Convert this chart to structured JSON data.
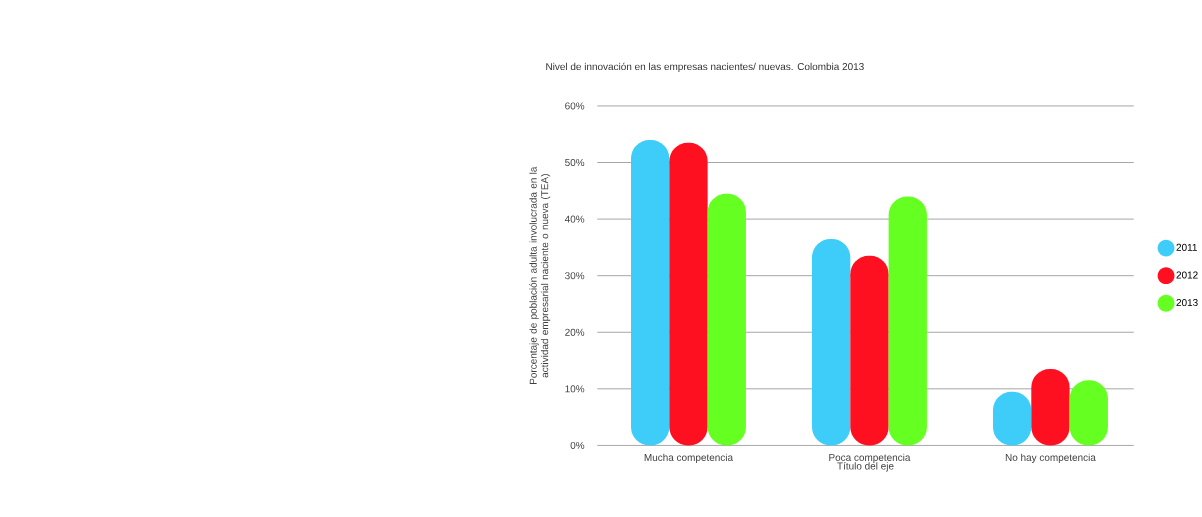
{
  "chart_data": {
    "type": "bar",
    "title": "Nivel de innovación en las empresas nacientes/ nuevas. Colombia 2013",
    "xlabel": "Título del eje",
    "ylabel": "Porcentaje de población adulta involucrada en la actividad empresarial naciente o nueva (TEA)",
    "categories": [
      "Mucha competencia",
      "Poca competencia",
      "No hay competencia"
    ],
    "series": [
      {
        "name": "2011",
        "color": "#3dcdf8",
        "values": [
          54,
          36.5,
          9.5
        ]
      },
      {
        "name": "2012",
        "color": "#ff1020",
        "values": [
          53.5,
          33.5,
          13.5
        ]
      },
      {
        "name": "2013",
        "color": "#66ff22",
        "values": [
          44.5,
          44,
          11.5
        ]
      }
    ],
    "ylim": [
      0,
      60
    ],
    "yticks": [
      {
        "value": 0,
        "label": "0%"
      },
      {
        "value": 10,
        "label": "10%"
      },
      {
        "value": 20,
        "label": "20%"
      },
      {
        "value": 30,
        "label": "30%"
      },
      {
        "value": 40,
        "label": "40%"
      },
      {
        "value": 50,
        "label": "50%"
      },
      {
        "value": 60,
        "label": "60%"
      }
    ],
    "grid": "y",
    "legend": "right"
  }
}
